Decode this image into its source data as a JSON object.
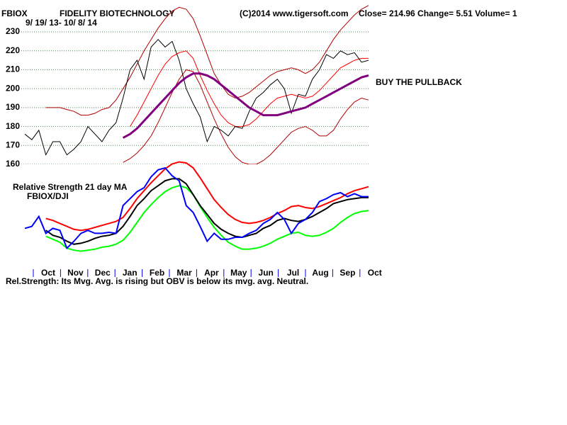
{
  "chart_data": [
    {
      "type": "line",
      "symbol": "FBIOX",
      "title": "FIDELITY BIOTECHNOLOGY",
      "copyright": "(C)2014 www.tigersoft.com",
      "quote": "Close=  214.96  Change= 5.51 Volume= 1",
      "subtitle": "9/ 19/ 13- 10/ 8/ 14",
      "annotation": "BUY THE PULLBACK",
      "ylim": [
        160,
        245
      ],
      "yticks": [
        160,
        170,
        180,
        190,
        200,
        210,
        220,
        230
      ],
      "grid": true,
      "series": [
        {
          "color": "#b00000",
          "values": [
            null,
            null,
            null,
            190,
            190,
            190,
            189,
            188,
            186,
            186,
            187,
            189,
            190,
            194,
            200,
            206,
            213,
            220,
            226,
            232,
            237,
            241,
            243,
            242,
            237,
            228,
            218,
            208,
            202,
            197,
            195,
            196,
            198,
            201,
            204,
            207,
            209,
            210,
            211,
            210,
            208,
            210,
            214,
            220,
            226,
            231,
            235,
            239,
            242,
            244
          ]
        },
        {
          "color": "#b00000",
          "values": [
            null,
            null,
            null,
            null,
            null,
            null,
            null,
            null,
            null,
            null,
            null,
            null,
            null,
            null,
            161,
            163,
            166,
            170,
            175,
            182,
            190,
            198,
            205,
            210,
            209,
            202,
            193,
            184,
            176,
            169,
            164,
            161,
            160,
            160,
            162,
            165,
            169,
            173,
            177,
            179,
            180,
            178,
            175,
            175,
            178,
            184,
            189,
            193,
            195,
            194
          ]
        },
        {
          "color": "#ff0000",
          "values": [
            null,
            null,
            null,
            null,
            null,
            null,
            null,
            null,
            null,
            null,
            null,
            null,
            null,
            null,
            null,
            180,
            186,
            193,
            200,
            207,
            213,
            217,
            219,
            220,
            216,
            207,
            199,
            192,
            186,
            182,
            180,
            180,
            181,
            184,
            188,
            192,
            195,
            196,
            197,
            196,
            195,
            196,
            199,
            203,
            207,
            211,
            213,
            215,
            216,
            216
          ]
        },
        {
          "color": "#000000",
          "values": [
            176,
            173,
            178,
            165,
            172,
            172,
            165,
            168,
            172,
            180,
            176,
            172,
            178,
            182,
            195,
            210,
            215,
            205,
            222,
            226,
            222,
            225,
            215,
            200,
            192,
            185,
            172,
            180,
            178,
            175,
            180,
            179,
            188,
            195,
            198,
            202,
            205,
            200,
            187,
            197,
            196,
            205,
            210,
            218,
            216,
            220,
            218,
            219,
            214,
            215
          ]
        },
        {
          "color": "#800080",
          "values": [
            null,
            null,
            null,
            null,
            null,
            null,
            null,
            null,
            null,
            null,
            null,
            null,
            null,
            null,
            174,
            176,
            179,
            183,
            187,
            191,
            195,
            199,
            203,
            206,
            208,
            208,
            207,
            205,
            202,
            199,
            196,
            193,
            190,
            188,
            186,
            186,
            186,
            187,
            188,
            189,
            190,
            192,
            194,
            196,
            198,
            200,
            202,
            204,
            206,
            207
          ]
        }
      ]
    },
    {
      "type": "line",
      "title": "Relative Strength 21 day MA",
      "subtitle": "FBIOX/DJI",
      "footer": "Rel.Strength: Its Mvg. Avg. is rising but OBV is below its mvg. avg. Neutral.",
      "xticks": [
        "Oct",
        "Nov",
        "Dec",
        "Jan",
        "Feb",
        "Mar",
        "Apr",
        "May",
        "Jun",
        "Jul",
        "Aug",
        "Sep",
        "Oct"
      ],
      "ylim": [
        0,
        105
      ],
      "series": [
        {
          "color": "#ff0000",
          "values": [
            null,
            null,
            null,
            44,
            42,
            39,
            36,
            33,
            32,
            33,
            35,
            37,
            39,
            41,
            45,
            54,
            64,
            72,
            80,
            87,
            94,
            99,
            101,
            100,
            95,
            85,
            74,
            63,
            55,
            48,
            43,
            40,
            39,
            40,
            42,
            45,
            49,
            52,
            56,
            57,
            55,
            54,
            56,
            59,
            62,
            65,
            69,
            72,
            74,
            76
          ]
        },
        {
          "color": "#00ff00",
          "values": [
            null,
            null,
            null,
            26,
            23,
            20,
            14,
            12,
            11,
            12,
            13,
            15,
            16,
            18,
            22,
            30,
            40,
            50,
            58,
            65,
            71,
            75,
            77,
            75,
            68,
            56,
            45,
            35,
            27,
            20,
            16,
            13,
            13,
            14,
            16,
            19,
            23,
            26,
            29,
            30,
            27,
            26,
            27,
            30,
            34,
            40,
            45,
            49,
            51,
            52
          ]
        },
        {
          "color": "#000000",
          "values": [
            null,
            null,
            null,
            32,
            27,
            25,
            21,
            18,
            19,
            21,
            24,
            26,
            27,
            29,
            36,
            46,
            57,
            64,
            72,
            77,
            82,
            84,
            84,
            79,
            68,
            57,
            48,
            39,
            33,
            29,
            26,
            25,
            27,
            29,
            34,
            37,
            42,
            44,
            42,
            41,
            43,
            46,
            50,
            54,
            59,
            61,
            63,
            64,
            65,
            65
          ]
        },
        {
          "color": "#0000ff",
          "values": [
            34,
            36,
            46,
            29,
            34,
            32,
            14,
            21,
            29,
            32,
            29,
            29,
            30,
            29,
            57,
            64,
            71,
            75,
            86,
            93,
            95,
            87,
            82,
            57,
            50,
            36,
            21,
            29,
            23,
            23,
            25,
            25,
            29,
            32,
            39,
            43,
            50,
            43,
            29,
            39,
            43,
            50,
            61,
            64,
            68,
            70,
            66,
            69,
            66,
            66
          ]
        }
      ]
    }
  ]
}
